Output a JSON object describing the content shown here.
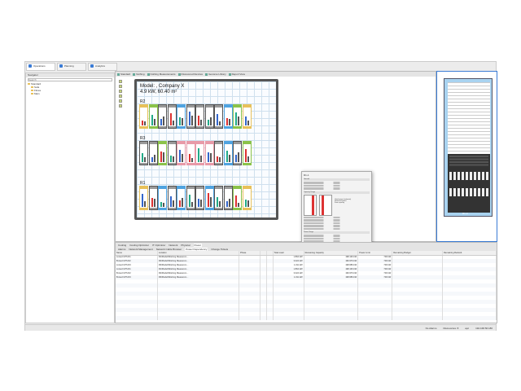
{
  "perspectives": [
    {
      "label": "Operations",
      "active": true
    },
    {
      "label": "Planning",
      "active": false
    },
    {
      "label": "Analytics",
      "active": false
    }
  ],
  "navigator": {
    "title": "Navigator",
    "search_placeholder": "Search",
    "tree": [
      {
        "label": "Standard",
        "level": 0
      },
      {
        "label": "Sofa",
        "level": 1
      },
      {
        "label": "Fitnes",
        "level": 1
      },
      {
        "label": "Main",
        "level": 1
      }
    ]
  },
  "editor_tabs": [
    "Standard",
    "Nothing",
    "Nothing Measurements",
    "Discovered Devices",
    "Genome Library",
    "Report View"
  ],
  "room": {
    "title": "Model: ,  Company X",
    "subtitle": "4.9 kW,  60.40 m²",
    "rows": [
      {
        "label": "R2",
        "racks": [
          "#e8c15a",
          "#8bc34a",
          "#999",
          "#999",
          "#4fa3e0",
          "#999",
          "#999",
          "#999",
          "#999",
          "#4fa3e0",
          "#8bc34a",
          "#e8c15a"
        ]
      },
      {
        "label": "R3",
        "racks": [
          "#999",
          "#999",
          "#8bc34a",
          "#999",
          "#e89aa8",
          "#e89aa8",
          "#e89aa8",
          "#e89aa8",
          "#999",
          "#4fa3e0",
          "#999",
          "#8bc34a"
        ]
      },
      {
        "label": "R1",
        "racks": [
          "#e8c15a",
          "#999",
          "#4fa3e0",
          "#999",
          "#4fa3e0",
          "#999",
          "#999",
          "#4fa3e0",
          "#999",
          "#999",
          "#8bc34a",
          "#e8c15a"
        ]
      }
    ]
  },
  "popup": {
    "title": "R1-1",
    "sections": [
      "General",
      "Capacity Usage",
      "Power Usage",
      "Measured Data"
    ],
    "legend": [
      "Used power (estimate)",
      "Reserved power",
      "Free capacity"
    ]
  },
  "bottom": {
    "tabs_top": [
      "Cooling",
      "Cooling Optimizer",
      "IT Optimizer",
      "Network",
      "Physical",
      "Power"
    ],
    "tabs": [
      "Alarms",
      "Network Management",
      "Network Cable Browser",
      "Power Dependency",
      "Change Tickets"
    ],
    "columns": [
      "Name",
      "Location",
      "Phase",
      "",
      "",
      "Total Load",
      "Remaining Capacity",
      "Power Limit",
      "Remaining Budget",
      "Remaining Redund."
    ],
    "rows": [
      {
        "name": "A-feed UPS R1",
        "loc": "R1/Model\\Working Measurem...",
        "load": "1.864 kW",
        "rem": "198.136 kW",
        "limit": "700 kW"
      },
      {
        "name": "B-feed UPS R2",
        "loc": "R2/Model\\Working Measurem...",
        "load": "3.024 kW",
        "rem": "196.976 kW",
        "limit": "700 kW"
      },
      {
        "name": "A-feed UPS R3",
        "loc": "R3/Model\\Working Measurem...",
        "load": "1.311 kW",
        "rem": "198.689 kW",
        "limit": "700 kW"
      },
      {
        "name": "A-feed UPS R1",
        "loc": "R1/Model\\Working Measurem...",
        "load": "1.864 kW",
        "rem": "198.136 kW",
        "limit": "700 kW"
      },
      {
        "name": "B-feed UPS R2",
        "loc": "R2/Model\\Working Measurem...",
        "load": "3.024 kW",
        "rem": "196.976 kW",
        "limit": "700 kW"
      },
      {
        "name": "B-feed UPS R3",
        "loc": "R3/Model\\Working Measurem...",
        "load": "1.311 kW",
        "rem": "198.689 kW",
        "limit": "700 kW"
      }
    ]
  },
  "status": {
    "alarms": "No Alarms",
    "discoveries": "Discoveries: 8",
    "user": "apc",
    "server": "192.168.56.180"
  },
  "rack_panel": {
    "label": "R1-4"
  }
}
